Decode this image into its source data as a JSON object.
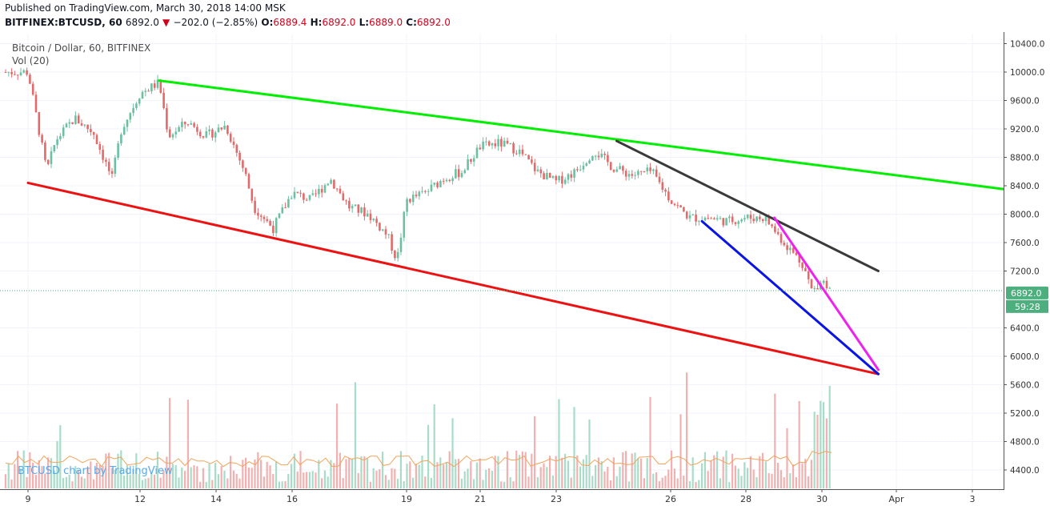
{
  "header": {
    "published": "Published on TradingView.com, March 30, 2018 14:00 MSK",
    "symbol": "BITFINEX:BTCUSD, 60",
    "last": "6892.0",
    "change": "−202.0 (−2.85%)",
    "o_label": "O:",
    "o": "6889.4",
    "h_label": "H:",
    "h": "6892.0",
    "l_label": "L:",
    "l": "6889.0",
    "c_label": "C:",
    "c": "6892.0"
  },
  "legend": {
    "title": "Bitcoin / Dollar, 60, BITFINEX",
    "vol": "Vol (20)"
  },
  "watermark": "BTCUSD chart by TradingView",
  "colors": {
    "up": "#6bc0a1",
    "down": "#e26a6a",
    "green_line": "#00ee00",
    "red_line": "#ee1111",
    "black_line": "#3a3a3a",
    "blue_line": "#0a14e6",
    "magenta_line": "#ee22ee",
    "price_tag": "#4caf7d"
  },
  "chart_data": {
    "type": "candlestick",
    "price_axis_ticks": [
      "10400.0",
      "10000.0",
      "9600.0",
      "9200.0",
      "8800.0",
      "8400.0",
      "8000.0",
      "7600.0",
      "7200.0",
      "6400.0",
      "6000.0",
      "5600.0",
      "5200.0",
      "4800.0",
      "4400.0"
    ],
    "x_axis_ticks": [
      "9",
      "12",
      "14",
      "16",
      "19",
      "21",
      "23",
      "26",
      "28",
      "30",
      "Apr",
      "3"
    ],
    "y_range": [
      4000,
      10600
    ],
    "last_price_label": "6892.0",
    "countdown_label": "59:28",
    "close_path": [
      {
        "d": "Mar 9 00:00",
        "v": 10000
      },
      {
        "d": "Mar 9 06:00",
        "v": 9300
      },
      {
        "d": "Mar 9 12:00",
        "v": 8600
      },
      {
        "d": "Mar 9 18:00",
        "v": 9050
      },
      {
        "d": "Mar 10 06:00",
        "v": 9350
      },
      {
        "d": "Mar 10 18:00",
        "v": 9150
      },
      {
        "d": "Mar 11 06:00",
        "v": 8500
      },
      {
        "d": "Mar 11 12:00",
        "v": 9200
      },
      {
        "d": "Mar 12 00:00",
        "v": 9700
      },
      {
        "d": "Mar 12 12:00",
        "v": 9850
      },
      {
        "d": "Mar 12 18:00",
        "v": 9100
      },
      {
        "d": "Mar 13 06:00",
        "v": 9300
      },
      {
        "d": "Mar 13 18:00",
        "v": 9100
      },
      {
        "d": "Mar 14 06:00",
        "v": 9250
      },
      {
        "d": "Mar 14 18:00",
        "v": 8600
      },
      {
        "d": "Mar 15 00:00",
        "v": 8100
      },
      {
        "d": "Mar 15 12:00",
        "v": 7800
      },
      {
        "d": "Mar 16 00:00",
        "v": 8300
      },
      {
        "d": "Mar 16 12:00",
        "v": 8200
      },
      {
        "d": "Mar 17 00:00",
        "v": 8500
      },
      {
        "d": "Mar 17 12:00",
        "v": 8100
      },
      {
        "d": "Mar 18 00:00",
        "v": 8000
      },
      {
        "d": "Mar 18 12:00",
        "v": 7700
      },
      {
        "d": "Mar 18 18:00",
        "v": 7350
      },
      {
        "d": "Mar 19 00:00",
        "v": 8200
      },
      {
        "d": "Mar 19 12:00",
        "v": 8300
      },
      {
        "d": "Mar 20 00:00",
        "v": 8500
      },
      {
        "d": "Mar 20 12:00",
        "v": 8600
      },
      {
        "d": "Mar 21 00:00",
        "v": 8950
      },
      {
        "d": "Mar 21 12:00",
        "v": 9000
      },
      {
        "d": "Mar 22 00:00",
        "v": 8900
      },
      {
        "d": "Mar 22 12:00",
        "v": 8600
      },
      {
        "d": "Mar 23 00:00",
        "v": 8450
      },
      {
        "d": "Mar 23 12:00",
        "v": 8600
      },
      {
        "d": "Mar 24 00:00",
        "v": 8900
      },
      {
        "d": "Mar 24 12:00",
        "v": 8650
      },
      {
        "d": "Mar 25 00:00",
        "v": 8550
      },
      {
        "d": "Mar 25 12:00",
        "v": 8600
      },
      {
        "d": "Mar 26 00:00",
        "v": 8200
      },
      {
        "d": "Mar 26 12:00",
        "v": 7950
      },
      {
        "d": "Mar 27 00:00",
        "v": 7950
      },
      {
        "d": "Mar 27 12:00",
        "v": 7900
      },
      {
        "d": "Mar 28 00:00",
        "v": 7950
      },
      {
        "d": "Mar 28 12:00",
        "v": 7950
      },
      {
        "d": "Mar 29 00:00",
        "v": 7600
      },
      {
        "d": "Mar 29 12:00",
        "v": 7300
      },
      {
        "d": "Mar 29 18:00",
        "v": 6900
      },
      {
        "d": "Mar 30 00:00",
        "v": 7100
      },
      {
        "d": "Mar 30 06:00",
        "v": 6890
      }
    ],
    "trend_lines": [
      {
        "color": "green",
        "from": {
          "d": "Mar 12 12:00",
          "v": 9880
        },
        "to": {
          "d": "Apr 4 08:00",
          "v": 8340
        }
      },
      {
        "color": "red",
        "from": {
          "d": "Mar 9 00:00",
          "v": 8440
        },
        "to": {
          "d": "Mar 31 12:00",
          "v": 5750
        }
      },
      {
        "color": "black",
        "from": {
          "d": "Mar 24 14:00",
          "v": 9030
        },
        "to": {
          "d": "Mar 31 12:00",
          "v": 7200
        }
      },
      {
        "color": "blue",
        "from": {
          "d": "Mar 26 20:00",
          "v": 7900
        },
        "to": {
          "d": "Mar 31 12:00",
          "v": 5750
        }
      },
      {
        "color": "magenta",
        "from": {
          "d": "Mar 28 18:00",
          "v": 7950
        },
        "to": {
          "d": "Mar 31 12:00",
          "v": 5810
        }
      }
    ]
  }
}
